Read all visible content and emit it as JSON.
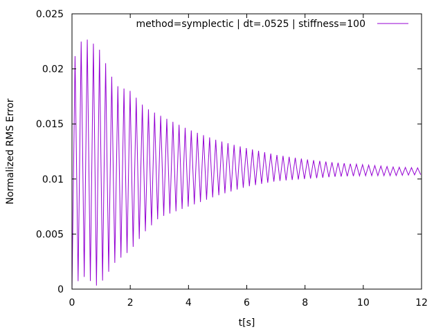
{
  "chart_data": {
    "type": "line",
    "title": "",
    "xlabel": "t[s]",
    "ylabel": "Normalized RMS Error",
    "xlim": [
      0,
      12
    ],
    "ylim": [
      0,
      0.025
    ],
    "xticks": [
      0,
      2,
      4,
      6,
      8,
      10,
      12
    ],
    "xtick_labels": [
      "0",
      "2",
      "4",
      "6",
      "8",
      "10",
      "12"
    ],
    "yticks": [
      0,
      0.005,
      0.01,
      0.015,
      0.02,
      0.025
    ],
    "ytick_labels": [
      "0",
      "0.005",
      "0.01",
      "0.015",
      "0.02",
      "0.025"
    ],
    "grid": false,
    "legend_position": "top-right",
    "series": [
      {
        "name": "method=symplectic | dt=.0525 | stiffness=100",
        "color": "#9400d3",
        "dt": 0.0525,
        "oscillation_period": 0.21,
        "baseline": 0.0107,
        "envelope_peaks": {
          "t": [
            0.0,
            0.35,
            0.5,
            0.9,
            1.5,
            2.0,
            2.5,
            3.0,
            4.0,
            5.0,
            6.0,
            7.0,
            8.0,
            9.0,
            10.0,
            11.0,
            12.0
          ],
          "max": [
            0.0205,
            0.0227,
            0.0227,
            0.022,
            0.0185,
            0.018,
            0.0165,
            0.0158,
            0.0145,
            0.0135,
            0.0128,
            0.0122,
            0.0118,
            0.0115,
            0.0113,
            0.0111,
            0.011
          ],
          "min": [
            0.0,
            0.0012,
            0.001,
            0.0002,
            0.0025,
            0.0035,
            0.0052,
            0.0065,
            0.0075,
            0.0085,
            0.0093,
            0.0098,
            0.01,
            0.0102,
            0.0103,
            0.0103,
            0.0104
          ]
        }
      }
    ]
  }
}
